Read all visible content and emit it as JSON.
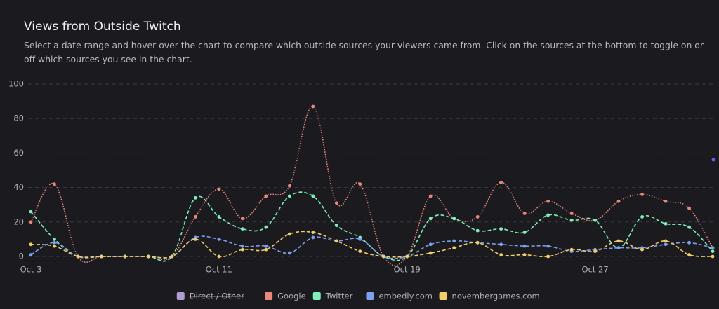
{
  "chart_data": {
    "type": "line",
    "title": "Views from Outside Twitch",
    "subtitle": "Select a date range and hover over the chart to compare which outside sources your viewers came from. Click on the sources at the bottom to toggle on or off which sources you see in the chart.",
    "categories": [
      "Oct 3",
      null,
      null,
      null,
      null,
      null,
      null,
      null,
      "Oct 11",
      null,
      null,
      null,
      null,
      null,
      null,
      null,
      "Oct 19",
      null,
      null,
      null,
      null,
      null,
      null,
      null,
      "Oct 27",
      null,
      null,
      null,
      null,
      null
    ],
    "ylim": [
      0,
      100
    ],
    "yticks": [
      0,
      20,
      40,
      60,
      80,
      100
    ],
    "grid": true,
    "hidden_series": [
      {
        "name": "Direct / Other",
        "color": "#c7b5f2"
      }
    ],
    "series": [
      {
        "name": "Google",
        "color": "#e8877a",
        "dash": "dotted",
        "values": [
          20,
          42,
          0,
          0,
          0,
          0,
          0,
          23,
          39,
          22,
          35,
          41,
          87,
          31,
          42,
          0,
          0,
          35,
          22,
          23,
          43,
          25,
          32,
          25,
          21,
          32,
          36,
          32,
          28,
          5
        ]
      },
      {
        "name": "Twitter",
        "color": "#7ef0b8",
        "dash": "dashed",
        "values": [
          26,
          10,
          0,
          0,
          0,
          0,
          0,
          34,
          23,
          16,
          17,
          35,
          35,
          18,
          11,
          0,
          0,
          22,
          22,
          15,
          16,
          14,
          24,
          21,
          21,
          5,
          23,
          19,
          17,
          3
        ]
      },
      {
        "name": "embedly.com",
        "color": "#7e9ff0",
        "dash": "dashed",
        "values": [
          1,
          8,
          0,
          0,
          0,
          0,
          0,
          11,
          10,
          6,
          6,
          2,
          11,
          9,
          10,
          0,
          0,
          7,
          9,
          8,
          7,
          6,
          6,
          3,
          4,
          5,
          5,
          7,
          8,
          5
        ]
      },
      {
        "name": "novembergames.com",
        "color": "#f2cd6b",
        "dash": "dashed",
        "values": [
          7,
          6,
          0,
          0,
          0,
          0,
          0,
          10,
          0,
          4,
          4,
          13,
          14,
          9,
          3,
          0,
          0,
          2,
          5,
          8,
          1,
          1,
          0,
          4,
          3,
          9,
          4,
          9,
          1,
          0
        ]
      }
    ]
  }
}
